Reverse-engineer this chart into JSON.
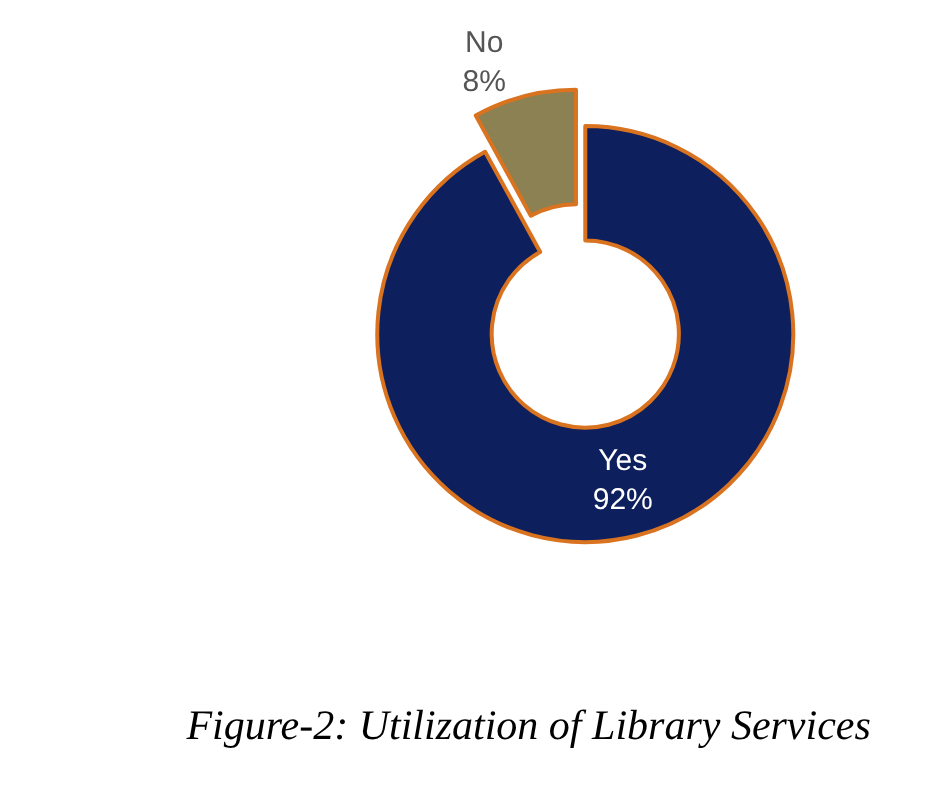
{
  "chart_data": {
    "type": "donut",
    "title": "Figure-2: Utilization of Library Services",
    "categories": [
      "Yes",
      "No"
    ],
    "values": [
      92,
      8
    ],
    "value_labels": [
      "92%",
      "8%"
    ],
    "colors": [
      "#0d1f5c",
      "#8b8152"
    ],
    "legend": false
  }
}
